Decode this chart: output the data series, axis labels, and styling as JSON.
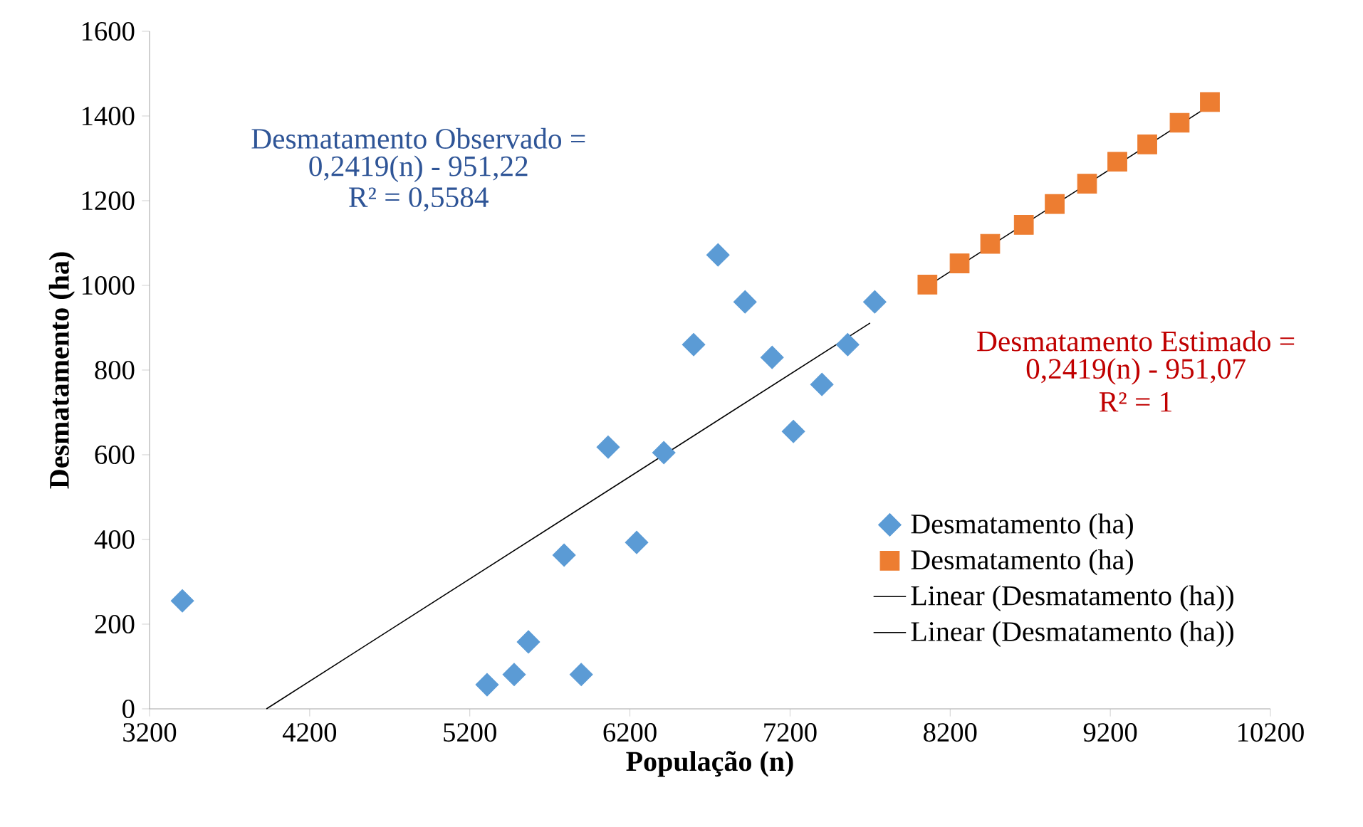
{
  "chart_data": {
    "type": "scatter",
    "xlabel": "População (n)",
    "ylabel": "Desmatamento (ha)",
    "xlim": [
      3200,
      10200
    ],
    "xticks": [
      3200,
      4200,
      5200,
      6200,
      7200,
      8200,
      9200,
      10200
    ],
    "ylim": [
      0,
      1600
    ],
    "yticks": [
      0,
      200,
      400,
      600,
      800,
      1000,
      1200,
      1400,
      1600
    ],
    "grid": false,
    "legend": "right",
    "series": [
      {
        "name": "Desmatamento (ha)",
        "marker": "diamond",
        "color": "#5b9bd5",
        "x": [
          3405,
          5308,
          5477,
          5566,
          5789,
          5896,
          6064,
          6242,
          6412,
          6598,
          6750,
          6919,
          7088,
          7221,
          7399,
          7560,
          7729
        ],
        "values": [
          255,
          57,
          81,
          158,
          363,
          81,
          618,
          393,
          605,
          860,
          1072,
          961,
          830,
          655,
          766,
          860,
          961
        ]
      },
      {
        "name": "Desmatamento (ha)",
        "marker": "square",
        "color": "#ed7d31",
        "x": [
          8058,
          8259,
          8450,
          8660,
          8853,
          9055,
          9244,
          9431,
          9633,
          9822
        ],
        "values": [
          1002,
          1052,
          1098,
          1143,
          1192,
          1240,
          1292,
          1333,
          1384,
          1433
        ]
      },
      {
        "name": "Linear (Desmatamento (ha))",
        "type": "line",
        "marker": "none",
        "color": "#000000",
        "x": [
          3930,
          7700
        ],
        "values": [
          0,
          911
        ]
      },
      {
        "name": "Linear (Desmatamento (ha))",
        "type": "line",
        "marker": "none",
        "color": "#000000",
        "x": [
          8058,
          9822
        ],
        "values": [
          998,
          1425
        ]
      }
    ],
    "annotations": [
      "Desmatamento Observado =",
      "0,2419(n) - 951,22",
      "R² = 0,5584",
      "Desmatamento Estimado =",
      "0,2419(n) - 951,07",
      "R² = 1"
    ]
  }
}
